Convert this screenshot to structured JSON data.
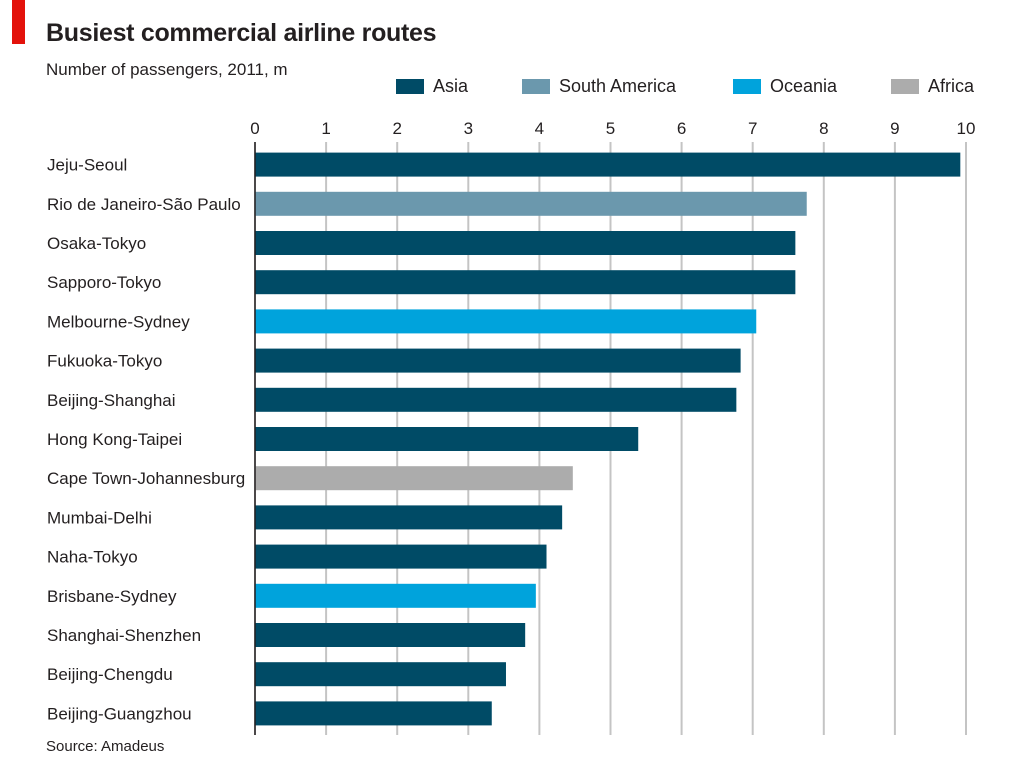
{
  "chart_data": {
    "type": "bar",
    "orientation": "horizontal",
    "title": "Busiest commercial airline routes",
    "subtitle": "Number of passengers, 2011, m",
    "source": "Source: Amadeus",
    "xlim": [
      0,
      10
    ],
    "ticks": [
      "0",
      "1",
      "2",
      "3",
      "4",
      "5",
      "6",
      "7",
      "8",
      "9",
      "10"
    ],
    "grid": true,
    "legend_position": "top",
    "legend": [
      {
        "label": "Asia",
        "color": "#004b66"
      },
      {
        "label": "South America",
        "color": "#6b98ad"
      },
      {
        "label": "Oceania",
        "color": "#00a3dc"
      },
      {
        "label": "Africa",
        "color": "#acacac"
      }
    ],
    "bars": [
      {
        "label": "Jeju-Seoul",
        "value": 9.92,
        "region": "Asia"
      },
      {
        "label": "Rio de Janeiro-São Paulo",
        "value": 7.76,
        "region": "South America"
      },
      {
        "label": "Osaka-Tokyo",
        "value": 7.6,
        "region": "Asia"
      },
      {
        "label": "Sapporo-Tokyo",
        "value": 7.6,
        "region": "Asia"
      },
      {
        "label": "Melbourne-Sydney",
        "value": 7.05,
        "region": "Oceania"
      },
      {
        "label": "Fukuoka-Tokyo",
        "value": 6.83,
        "region": "Asia"
      },
      {
        "label": "Beijing-Shanghai",
        "value": 6.77,
        "region": "Asia"
      },
      {
        "label": "Hong Kong-Taipei",
        "value": 5.39,
        "region": "Asia"
      },
      {
        "label": "Cape Town-Johannesburg",
        "value": 4.47,
        "region": "Africa"
      },
      {
        "label": "Mumbai-Delhi",
        "value": 4.32,
        "region": "Asia"
      },
      {
        "label": "Naha-Tokyo",
        "value": 4.1,
        "region": "Asia"
      },
      {
        "label": "Brisbane-Sydney",
        "value": 3.95,
        "region": "Oceania"
      },
      {
        "label": "Shanghai-Shenzhen",
        "value": 3.8,
        "region": "Asia"
      },
      {
        "label": "Beijing-Chengdu",
        "value": 3.53,
        "region": "Asia"
      },
      {
        "label": "Beijing-Guangzhou",
        "value": 3.33,
        "region": "Asia"
      }
    ]
  }
}
